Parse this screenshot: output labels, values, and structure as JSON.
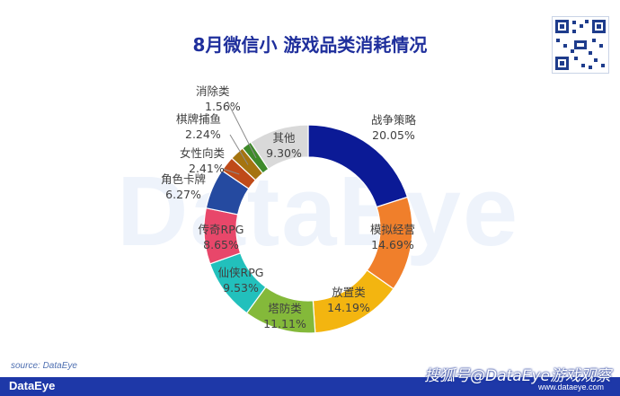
{
  "chart_data": {
    "type": "pie",
    "variant": "donut",
    "title": "8月微信小 游戏品类消耗情况",
    "categories": [
      "战争策略",
      "模拟经营",
      "放置类",
      "塔防类",
      "仙侠RPG",
      "传奇RPG",
      "角色卡牌",
      "女性向类",
      "棋牌捕鱼",
      "消除类",
      "其他"
    ],
    "values": [
      20.05,
      14.69,
      14.19,
      11.11,
      9.53,
      8.65,
      6.27,
      2.41,
      2.24,
      1.56,
      9.3
    ],
    "value_labels": [
      "20.05%",
      "14.69%",
      "14.19%",
      "11.11%",
      "9.53%",
      "8.65%",
      "6.27%",
      "2.41%",
      "2.24%",
      "1.56%",
      "9.30%"
    ],
    "colors": [
      "#0b1a96",
      "#f07f2b",
      "#f3b510",
      "#84b93a",
      "#22c0bc",
      "#e8476a",
      "#254aa0",
      "#bf4a18",
      "#a57410",
      "#3e8a2a",
      "#d9d9d9"
    ],
    "legend": "none"
  },
  "watermark": "DataEye",
  "qr_icon": "qr-code-icon",
  "source": "source: DataEye",
  "footer": {
    "brand": "DataEye",
    "credit": "搜狐号@DataEye游戏观察",
    "url": "www.dataeye.com"
  }
}
